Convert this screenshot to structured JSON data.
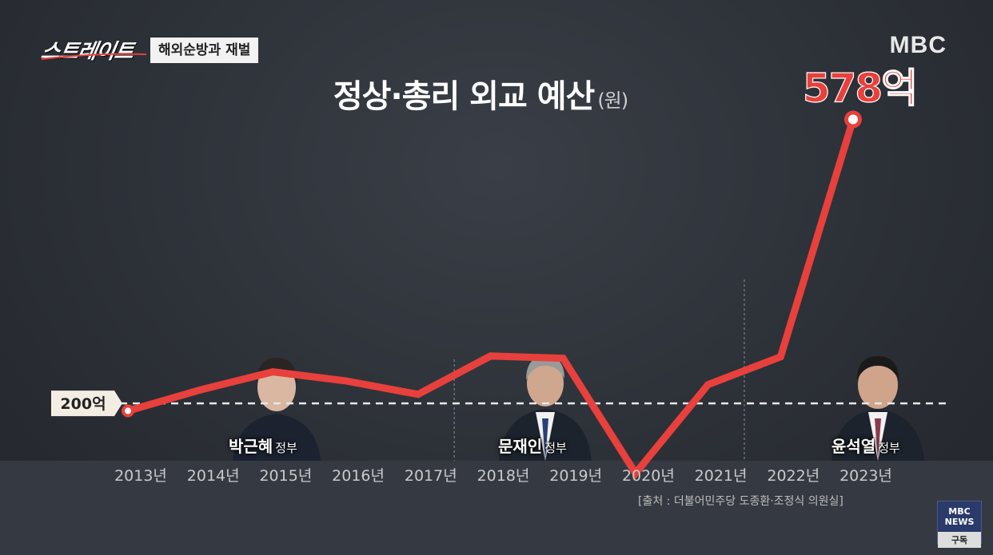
{
  "header": {
    "program_logo": "스트레이트",
    "topic": "해외순방과 재벌",
    "broadcaster": "MBC"
  },
  "chart_data": {
    "type": "line",
    "title": "정상·총리 외교 예산",
    "unit": "(원)",
    "categories": [
      "2013년",
      "2014년",
      "2015년",
      "2016년",
      "2017년",
      "2018년",
      "2019년",
      "2020년",
      "2021년",
      "2022년",
      "2023년"
    ],
    "series": [
      {
        "values": [
          190,
          218,
          242,
          230,
          212,
          263,
          260,
          107,
          225,
          262,
          578
        ]
      }
    ],
    "highlight_label": "578억",
    "reference_line": {
      "value": 200,
      "label": "200억"
    },
    "ylim": [
      80,
      620
    ],
    "color": "#e8403c",
    "governments": [
      {
        "name": "박근혜",
        "suffix": "정부"
      },
      {
        "name": "문재인",
        "suffix": "정부"
      },
      {
        "name": "윤석열",
        "suffix": "정부"
      }
    ],
    "source": "[출처 : 더불어민주당 도종환·조정식 의원실]"
  },
  "subscribe": {
    "top": "MBC NEWS",
    "bottom": "구독"
  }
}
